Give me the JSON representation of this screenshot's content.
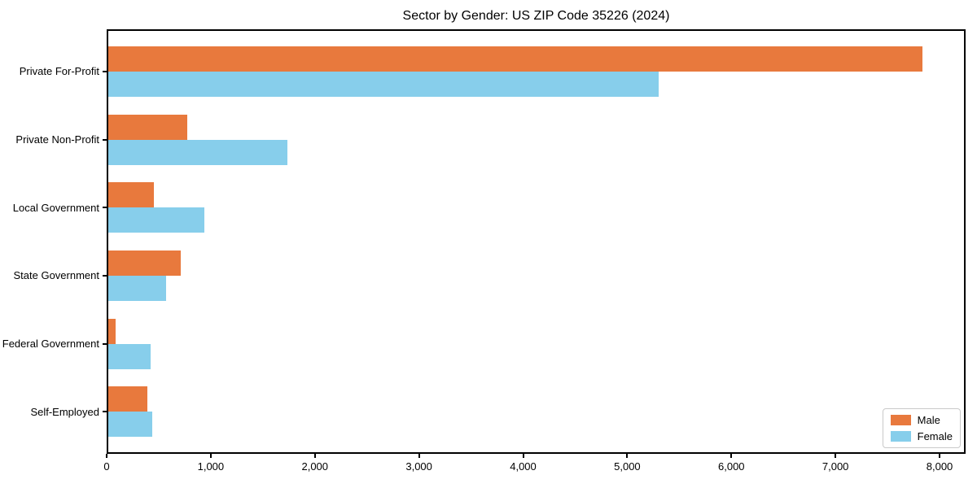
{
  "title": "Sector by Gender: US ZIP Code 35226 (2024)",
  "colors": {
    "male": "#e8793d",
    "female": "#87ceeb",
    "axis": "#000000",
    "legend_border": "#c9c9c9",
    "background": "#ffffff"
  },
  "legend": {
    "position": "lower right",
    "items": [
      {
        "label": "Male",
        "color": "#e8793d"
      },
      {
        "label": "Female",
        "color": "#87ceeb"
      }
    ]
  },
  "chart_data": {
    "type": "bar",
    "orientation": "horizontal",
    "title": "Sector by Gender: US ZIP Code 35226 (2024)",
    "categories": [
      "Private For-Profit",
      "Private Non-Profit",
      "Local Government",
      "State Government",
      "Federal Government",
      "Self-Employed"
    ],
    "series": [
      {
        "name": "Male",
        "color": "#e8793d",
        "values": [
          7850,
          760,
          440,
          700,
          70,
          380
        ]
      },
      {
        "name": "Female",
        "color": "#87ceeb",
        "values": [
          5310,
          1730,
          930,
          560,
          410,
          420
        ]
      }
    ],
    "xlabel": "",
    "ylabel": "",
    "xlim": [
      0,
      8250
    ],
    "xticks": [
      0,
      1000,
      2000,
      3000,
      4000,
      5000,
      6000,
      7000,
      8000
    ],
    "xtick_labels": [
      "0",
      "1,000",
      "2,000",
      "3,000",
      "4,000",
      "5,000",
      "6,000",
      "7,000",
      "8,000"
    ],
    "grid": false,
    "legend_position": "lower right"
  }
}
